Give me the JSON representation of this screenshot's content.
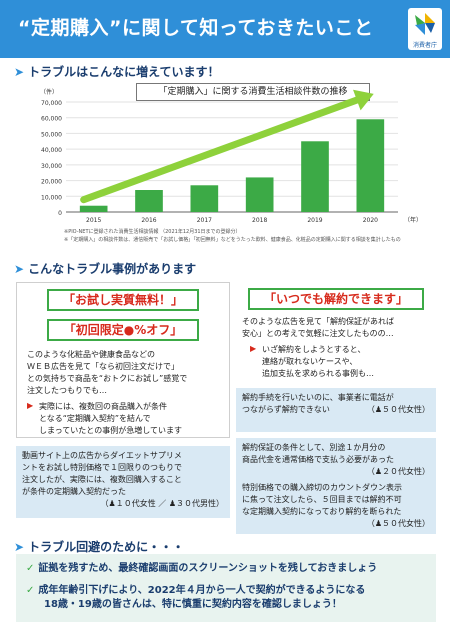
{
  "header": {
    "title": "“定期購入”に関して知っておきたいこと",
    "logo_text": "消費者庁",
    "logo_icon": "caa-logo-icon"
  },
  "section1": {
    "heading": "トラブルはこんなに増えています！"
  },
  "chart_data": {
    "type": "bar",
    "title": "「定期購入」に関する消費生活相談件数の推移",
    "ylabel": "（件）",
    "xlabel": "（年）",
    "categories": [
      "2015",
      "2016",
      "2017",
      "2018",
      "2019",
      "2020"
    ],
    "values": [
      4000,
      14000,
      17000,
      22000,
      45000,
      59000
    ],
    "ylim": [
      0,
      70000
    ],
    "yticks": [
      "0",
      "10,000",
      "20,000",
      "30,000",
      "40,000",
      "50,000",
      "60,000",
      "70,000"
    ],
    "bar_color": "#3caa46",
    "trend_color": "#8ed13b",
    "notes": [
      "※PIO-NETに登録された消費生活相談情報 （2021年12月31日までの登録分）",
      "※「定期購入」の相談件数は、通信販売で「お試し価格」「初回無料」などをうたった飲料、健康食品、化粧品の定期購入に関する相談を集計したもの"
    ]
  },
  "section2": {
    "heading": "こんなトラブル事例があります"
  },
  "case_left": {
    "label1": "「お試し実質無料！」",
    "label2": "「初回限定●%オフ」",
    "text": [
      "このような化粧品や健康食品などの",
      "ＷＥＢ広告を見て「なら初回注文だけで」",
      "との気持ちで商品を“おトクにお試し”感覚で",
      "注文したつもりでも…"
    ],
    "warning": [
      "実際には、複数回の商品購入が条件",
      "となる“定期購入契約”を結んで",
      "しまっていたとの事例が急増しています"
    ]
  },
  "case_right": {
    "label": "「いつでも解約できます」",
    "text": [
      "そのような広告を見て「解約保証があれば",
      "安心」との考えで気軽に注文したものの…"
    ],
    "warning": [
      "いざ解約をしようとすると、",
      "連絡が取れないケースや、",
      "追加支払を求められる事例も…"
    ]
  },
  "complaints": [
    {
      "lines": [
        "解約手続を行いたいのに、事業者に電話が",
        "つながらず解約できない"
      ],
      "who": "（♟５０代女性）"
    },
    {
      "lines": [
        "解約保証の条件として、別途１か月分の",
        "商品代金を通常価格で支払う必要があった"
      ],
      "who": "（♟２０代女性）"
    },
    {
      "lines": [
        "動画サイト上の広告からダイエットサプリメ",
        "ントをお試し特別価格で１回限りのつもりで",
        "注文したが、実際には、複数回購入すること",
        "が条件の定期購入契約だった"
      ],
      "who": "（♟１０代女性 ／ ♟３０代男性）"
    },
    {
      "lines": [
        "特別価格での購入締切のカウントダウン表示",
        "に焦って注文したら、５回目までは解約不可",
        "な定期購入契約になっており解約を断られた"
      ],
      "who": "（♟５０代女性）"
    }
  ],
  "section3": {
    "heading": "トラブル回避のために・・・"
  },
  "tips": [
    [
      "証拠を残すため、最終確認画面のスクリーンショットを残しておきましょう"
    ],
    [
      "成年年齢引下げにより、2022年４月から一人で契約ができるようになる",
      "18歳・19歳の皆さんは、特に慎重に契約内容を確認しましょう！"
    ]
  ]
}
